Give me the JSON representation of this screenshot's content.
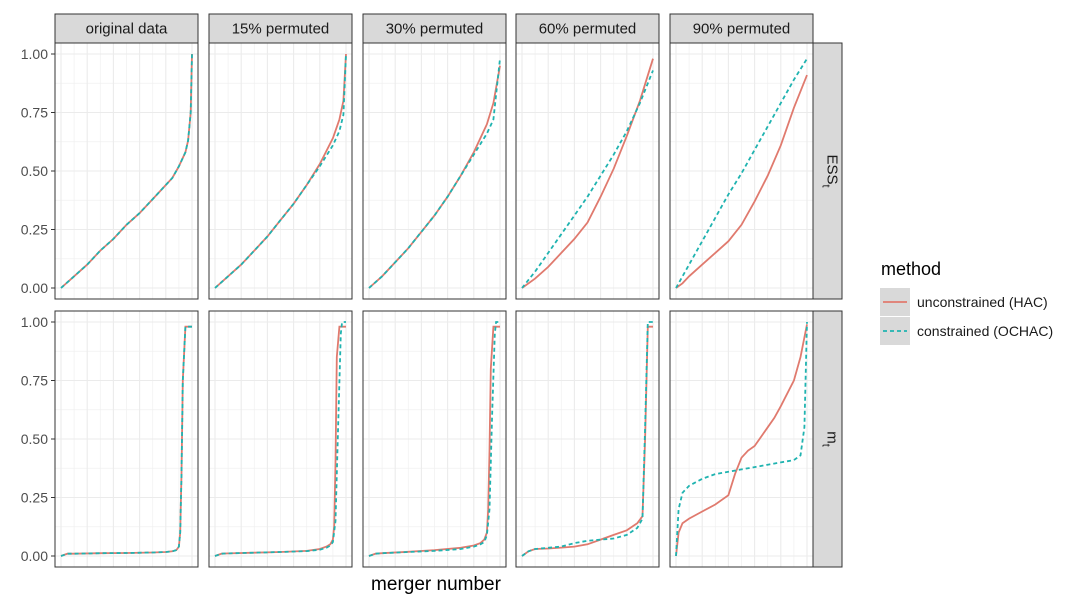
{
  "chart_data": {
    "type": "line",
    "facet_columns": [
      "original data",
      "15% permuted",
      "30% permuted",
      "60% permuted",
      "90% permuted"
    ],
    "facet_rows": [
      {
        "label": "ESS",
        "subscript": "t"
      },
      {
        "label": "m",
        "subscript": "t"
      }
    ],
    "xlabel": "merger number",
    "ylabel": "",
    "ylim": [
      0,
      1
    ],
    "y_ticks": [
      "0.00",
      "0.25",
      "0.50",
      "0.75",
      "1.00"
    ],
    "grid": true,
    "legend": {
      "title": "method",
      "position": "right",
      "entries": [
        {
          "label": "unconstrained (HAC)",
          "color": "#E07A6E",
          "dash": "solid"
        },
        {
          "label": "constrained (OCHAC)",
          "color": "#1FB3B0",
          "dash": "dashed"
        }
      ]
    },
    "x_domain": [
      0,
      1
    ],
    "panels": [
      {
        "row": 0,
        "col": 0,
        "series": [
          {
            "name": "unconstrained (HAC)",
            "x": [
              0,
              0.1,
              0.2,
              0.3,
              0.4,
              0.5,
              0.6,
              0.7,
              0.8,
              0.85,
              0.9,
              0.95,
              0.97,
              0.99,
              1.0
            ],
            "y": [
              0,
              0.05,
              0.1,
              0.16,
              0.21,
              0.27,
              0.32,
              0.38,
              0.44,
              0.47,
              0.52,
              0.58,
              0.63,
              0.75,
              1.0
            ]
          },
          {
            "name": "constrained (OCHAC)",
            "x": [
              0,
              0.1,
              0.2,
              0.3,
              0.4,
              0.5,
              0.6,
              0.7,
              0.8,
              0.85,
              0.9,
              0.95,
              0.97,
              0.99,
              1.0
            ],
            "y": [
              0,
              0.05,
              0.1,
              0.16,
              0.21,
              0.27,
              0.32,
              0.38,
              0.44,
              0.47,
              0.52,
              0.58,
              0.63,
              0.75,
              1.0
            ]
          }
        ]
      },
      {
        "row": 0,
        "col": 1,
        "series": [
          {
            "name": "unconstrained (HAC)",
            "x": [
              0,
              0.1,
              0.2,
              0.3,
              0.4,
              0.5,
              0.6,
              0.7,
              0.8,
              0.9,
              0.95,
              0.98,
              1.0
            ],
            "y": [
              0,
              0.05,
              0.1,
              0.16,
              0.22,
              0.29,
              0.36,
              0.44,
              0.53,
              0.64,
              0.72,
              0.8,
              1.0
            ]
          },
          {
            "name": "constrained (OCHAC)",
            "x": [
              0,
              0.1,
              0.2,
              0.3,
              0.4,
              0.5,
              0.6,
              0.7,
              0.8,
              0.9,
              0.95,
              0.98,
              1.0
            ],
            "y": [
              0,
              0.05,
              0.1,
              0.16,
              0.22,
              0.29,
              0.36,
              0.44,
              0.52,
              0.61,
              0.67,
              0.74,
              1.0
            ]
          }
        ]
      },
      {
        "row": 0,
        "col": 2,
        "series": [
          {
            "name": "unconstrained (HAC)",
            "x": [
              0,
              0.1,
              0.2,
              0.3,
              0.4,
              0.5,
              0.6,
              0.7,
              0.8,
              0.9,
              0.95,
              1.0
            ],
            "y": [
              0,
              0.05,
              0.11,
              0.17,
              0.24,
              0.31,
              0.39,
              0.48,
              0.58,
              0.7,
              0.79,
              0.95
            ]
          },
          {
            "name": "constrained (OCHAC)",
            "x": [
              0,
              0.1,
              0.2,
              0.3,
              0.4,
              0.5,
              0.6,
              0.7,
              0.8,
              0.9,
              0.95,
              1.0
            ],
            "y": [
              0,
              0.05,
              0.11,
              0.17,
              0.24,
              0.31,
              0.39,
              0.48,
              0.57,
              0.66,
              0.72,
              0.98
            ]
          }
        ]
      },
      {
        "row": 0,
        "col": 3,
        "series": [
          {
            "name": "unconstrained (HAC)",
            "x": [
              0,
              0.1,
              0.2,
              0.3,
              0.4,
              0.5,
              0.6,
              0.7,
              0.8,
              0.9,
              1.0
            ],
            "y": [
              0,
              0.04,
              0.09,
              0.15,
              0.21,
              0.28,
              0.39,
              0.51,
              0.65,
              0.8,
              0.98
            ]
          },
          {
            "name": "constrained (OCHAC)",
            "x": [
              0,
              0.1,
              0.2,
              0.3,
              0.4,
              0.5,
              0.6,
              0.7,
              0.8,
              0.9,
              1.0
            ],
            "y": [
              0,
              0.07,
              0.15,
              0.23,
              0.31,
              0.39,
              0.48,
              0.57,
              0.67,
              0.79,
              0.93
            ]
          }
        ]
      },
      {
        "row": 0,
        "col": 4,
        "series": [
          {
            "name": "unconstrained (HAC)",
            "x": [
              0,
              0.05,
              0.1,
              0.2,
              0.3,
              0.4,
              0.5,
              0.6,
              0.7,
              0.8,
              0.9,
              1.0
            ],
            "y": [
              0,
              0.02,
              0.05,
              0.1,
              0.15,
              0.2,
              0.27,
              0.37,
              0.48,
              0.61,
              0.77,
              0.91
            ]
          },
          {
            "name": "constrained (OCHAC)",
            "x": [
              0,
              0.05,
              0.1,
              0.2,
              0.3,
              0.4,
              0.5,
              0.6,
              0.7,
              0.8,
              0.9,
              1.0
            ],
            "y": [
              0,
              0.05,
              0.1,
              0.2,
              0.3,
              0.4,
              0.49,
              0.59,
              0.69,
              0.79,
              0.89,
              0.98
            ]
          }
        ]
      },
      {
        "row": 1,
        "col": 0,
        "series": [
          {
            "name": "unconstrained (HAC)",
            "x": [
              0,
              0.05,
              0.1,
              0.3,
              0.5,
              0.7,
              0.8,
              0.85,
              0.88,
              0.9,
              0.91,
              0.92,
              0.93,
              0.95,
              1.0
            ],
            "y": [
              0,
              0.01,
              0.01,
              0.012,
              0.013,
              0.015,
              0.017,
              0.02,
              0.025,
              0.04,
              0.1,
              0.35,
              0.75,
              0.98,
              0.98
            ]
          },
          {
            "name": "constrained (OCHAC)",
            "x": [
              0,
              0.05,
              0.1,
              0.3,
              0.5,
              0.7,
              0.8,
              0.85,
              0.88,
              0.9,
              0.91,
              0.92,
              0.93,
              0.95,
              1.0
            ],
            "y": [
              0,
              0.01,
              0.01,
              0.012,
              0.013,
              0.015,
              0.017,
              0.02,
              0.025,
              0.04,
              0.1,
              0.35,
              0.75,
              0.98,
              0.98
            ]
          }
        ]
      },
      {
        "row": 1,
        "col": 1,
        "series": [
          {
            "name": "unconstrained (HAC)",
            "x": [
              0,
              0.05,
              0.1,
              0.3,
              0.5,
              0.7,
              0.8,
              0.85,
              0.88,
              0.9,
              0.91,
              0.92,
              0.93,
              0.95,
              1.0
            ],
            "y": [
              0,
              0.01,
              0.011,
              0.014,
              0.017,
              0.022,
              0.03,
              0.04,
              0.05,
              0.07,
              0.13,
              0.4,
              0.85,
              0.98,
              0.98
            ]
          },
          {
            "name": "constrained (OCHAC)",
            "x": [
              0,
              0.05,
              0.1,
              0.3,
              0.5,
              0.7,
              0.8,
              0.85,
              0.88,
              0.9,
              0.92,
              0.94,
              0.96,
              0.97,
              1.0
            ],
            "y": [
              0,
              0.01,
              0.011,
              0.014,
              0.017,
              0.021,
              0.027,
              0.035,
              0.045,
              0.06,
              0.15,
              0.55,
              0.95,
              1.0,
              1.0
            ]
          }
        ]
      },
      {
        "row": 1,
        "col": 2,
        "series": [
          {
            "name": "unconstrained (HAC)",
            "x": [
              0,
              0.05,
              0.1,
              0.3,
              0.5,
              0.7,
              0.8,
              0.85,
              0.88,
              0.9,
              0.91,
              0.92,
              0.93,
              0.95,
              1.0
            ],
            "y": [
              0,
              0.01,
              0.012,
              0.018,
              0.025,
              0.035,
              0.045,
              0.055,
              0.07,
              0.1,
              0.2,
              0.45,
              0.8,
              0.98,
              0.98
            ]
          },
          {
            "name": "constrained (OCHAC)",
            "x": [
              0,
              0.05,
              0.1,
              0.3,
              0.5,
              0.7,
              0.8,
              0.85,
              0.88,
              0.9,
              0.92,
              0.94,
              0.96,
              0.97,
              1.0
            ],
            "y": [
              0,
              0.01,
              0.012,
              0.017,
              0.022,
              0.03,
              0.04,
              0.05,
              0.06,
              0.09,
              0.2,
              0.6,
              0.95,
              1.0,
              1.0
            ]
          }
        ]
      },
      {
        "row": 1,
        "col": 3,
        "series": [
          {
            "name": "unconstrained (HAC)",
            "x": [
              0,
              0.05,
              0.1,
              0.2,
              0.3,
              0.4,
              0.5,
              0.6,
              0.7,
              0.8,
              0.88,
              0.92,
              0.94,
              0.96,
              1.0
            ],
            "y": [
              0,
              0.02,
              0.03,
              0.032,
              0.036,
              0.04,
              0.05,
              0.07,
              0.09,
              0.11,
              0.14,
              0.17,
              0.5,
              0.98,
              0.98
            ]
          },
          {
            "name": "constrained (OCHAC)",
            "x": [
              0,
              0.05,
              0.1,
              0.2,
              0.3,
              0.4,
              0.5,
              0.6,
              0.7,
              0.8,
              0.88,
              0.92,
              0.94,
              0.96,
              1.0
            ],
            "y": [
              0,
              0.02,
              0.03,
              0.035,
              0.04,
              0.055,
              0.065,
              0.07,
              0.075,
              0.09,
              0.12,
              0.16,
              0.55,
              1.0,
              1.0
            ]
          }
        ]
      },
      {
        "row": 1,
        "col": 4,
        "series": [
          {
            "name": "unconstrained (HAC)",
            "x": [
              0,
              0.02,
              0.05,
              0.1,
              0.2,
              0.3,
              0.4,
              0.45,
              0.5,
              0.55,
              0.6,
              0.7,
              0.75,
              0.8,
              0.9,
              0.95,
              1.0
            ],
            "y": [
              0,
              0.1,
              0.14,
              0.16,
              0.19,
              0.22,
              0.26,
              0.35,
              0.42,
              0.45,
              0.47,
              0.55,
              0.59,
              0.64,
              0.75,
              0.85,
              0.99
            ]
          },
          {
            "name": "constrained (OCHAC)",
            "x": [
              0,
              0.02,
              0.05,
              0.1,
              0.2,
              0.3,
              0.4,
              0.5,
              0.6,
              0.7,
              0.8,
              0.9,
              0.95,
              0.98,
              1.0
            ],
            "y": [
              0,
              0.2,
              0.27,
              0.3,
              0.33,
              0.35,
              0.36,
              0.37,
              0.38,
              0.39,
              0.4,
              0.41,
              0.43,
              0.55,
              1.0
            ]
          }
        ]
      }
    ]
  }
}
